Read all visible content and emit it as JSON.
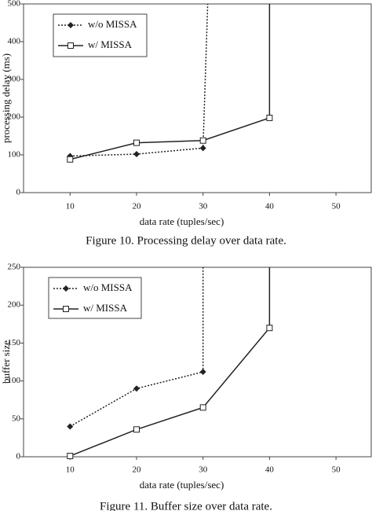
{
  "chart_data": [
    {
      "type": "line",
      "caption": "Figure 10. Processing delay over data rate.",
      "xlabel": "data rate (tuples/sec)",
      "ylabel": "processing delay (ms)",
      "xlim": [
        3,
        55.3
      ],
      "xticks": [
        10,
        20,
        30,
        40,
        50
      ],
      "ylim": [
        0,
        500
      ],
      "yticks": [
        0,
        100,
        200,
        300,
        400,
        500
      ],
      "legend": "upper left",
      "series": [
        {
          "name": "w/o MISSA",
          "color": "#222222",
          "line_style": "dotted",
          "marker": "diamond",
          "x": [
            10,
            20,
            30,
            30.7
          ],
          "values": [
            97,
            102,
            118,
            500
          ]
        },
        {
          "name": "w/ MISSA",
          "color": "#222222",
          "line_style": "solid",
          "marker": "square",
          "x": [
            10,
            20,
            30,
            40,
            40
          ],
          "values": [
            88,
            132,
            138,
            198,
            500
          ]
        }
      ]
    },
    {
      "type": "line",
      "caption": "Figure 11. Buffer size over data rate.",
      "xlabel": "data rate (tuples/sec)",
      "ylabel": "buffer size",
      "xlim": [
        3,
        55.3
      ],
      "xticks": [
        10,
        20,
        30,
        40,
        50
      ],
      "ylim": [
        0,
        250
      ],
      "yticks": [
        0,
        50,
        100,
        150,
        200,
        250
      ],
      "legend": "upper left",
      "series": [
        {
          "name": "w/o MISSA",
          "color": "#222222",
          "line_style": "dotted",
          "marker": "diamond",
          "x": [
            10,
            20,
            30,
            30
          ],
          "values": [
            40,
            90,
            112,
            250
          ]
        },
        {
          "name": "w/ MISSA",
          "color": "#222222",
          "line_style": "solid",
          "marker": "square",
          "x": [
            10,
            20,
            30,
            40,
            40
          ],
          "values": [
            1,
            36,
            65,
            170,
            250
          ]
        }
      ]
    }
  ]
}
